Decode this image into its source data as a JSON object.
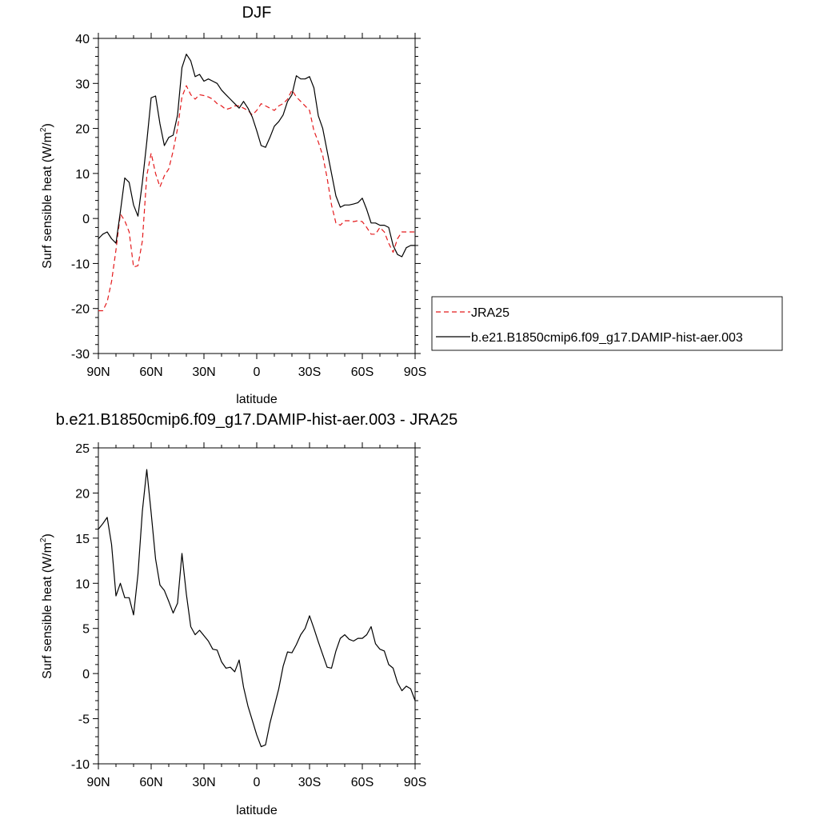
{
  "chart_data": [
    {
      "type": "line",
      "title": "DJF",
      "xlabel": "latitude",
      "ylabel": "Surf sensible heat (W/m",
      "ylabel_sup": "2",
      "ylabel_close": ")",
      "xlim": [
        -90,
        90
      ],
      "ylim": [
        -30,
        40
      ],
      "x_ticks": [
        -90,
        -60,
        -30,
        0,
        30,
        60,
        90
      ],
      "x_tick_labels": [
        "90N",
        "60N",
        "30N",
        "0",
        "30S",
        "60S",
        "90S"
      ],
      "y_ticks": [
        -30,
        -20,
        -10,
        0,
        10,
        20,
        30,
        40
      ],
      "y_tick_labels": [
        "-30",
        "-20",
        "-10",
        "0",
        "10",
        "20",
        "30",
        "40"
      ],
      "legend_placement": "right",
      "series": [
        {
          "name": "JRA25",
          "color": "#e41a1c",
          "dash": "dashed",
          "x": [
            -90,
            -87.5,
            -85,
            -82.5,
            -80,
            -77.5,
            -75,
            -72.5,
            -70,
            -67.5,
            -65,
            -62.5,
            -60,
            -57.5,
            -55,
            -52.5,
            -50,
            -47.5,
            -45,
            -42.5,
            -40,
            -37.5,
            -35,
            -32.5,
            -30,
            -27.5,
            -25,
            -22.5,
            -20,
            -17.5,
            -15,
            -12.5,
            -10,
            -7.5,
            -5,
            -2.5,
            0,
            2.5,
            5,
            7.5,
            10,
            12.5,
            15,
            17.5,
            20,
            22.5,
            25,
            27.5,
            30,
            32.5,
            35,
            37.5,
            40,
            42.5,
            45,
            47.5,
            50,
            52.5,
            55,
            57.5,
            60,
            62.5,
            65,
            67.5,
            70,
            72.5,
            75,
            77.5,
            80,
            82.5,
            85,
            87.5,
            90
          ],
          "y": [
            -20.5,
            -20.5,
            -18.5,
            -14,
            -7,
            1,
            -0.5,
            -3,
            -10.8,
            -10.5,
            -5,
            9.5,
            14.5,
            10,
            7,
            9.5,
            11,
            15,
            20,
            27,
            29.5,
            27.5,
            26.5,
            27.5,
            27.3,
            27,
            26.5,
            25.5,
            25,
            24.2,
            24.5,
            25,
            25,
            24.5,
            24,
            23,
            24,
            25.5,
            25,
            24.5,
            24,
            25,
            25.5,
            26.5,
            28.5,
            27,
            26,
            25,
            24,
            19.5,
            17,
            14,
            9,
            3,
            -1,
            -1.5,
            -0.5,
            -0.5,
            -0.7,
            -0.5,
            -0.7,
            -2,
            -3.5,
            -3.5,
            -2,
            -3,
            -5.5,
            -7.5,
            -4.5,
            -3,
            -3,
            -3,
            -3
          ]
        },
        {
          "name": "b.e21.B1850cmip6.f09_g17.DAMIP-hist-aer.003",
          "color": "#000000",
          "dash": "solid",
          "x": [
            -90,
            -87.5,
            -85,
            -82.5,
            -80,
            -77.5,
            -75,
            -72.5,
            -70,
            -67.5,
            -65,
            -62.5,
            -60,
            -57.5,
            -55,
            -52.5,
            -50,
            -47.5,
            -45,
            -42.5,
            -40,
            -37.5,
            -35,
            -32.5,
            -30,
            -27.5,
            -25,
            -22.5,
            -20,
            -17.5,
            -15,
            -12.5,
            -10,
            -7.5,
            -5,
            -2.5,
            0,
            2.5,
            5,
            7.5,
            10,
            12.5,
            15,
            17.5,
            20,
            22.5,
            25,
            27.5,
            30,
            32.5,
            35,
            37.5,
            40,
            42.5,
            45,
            47.5,
            50,
            52.5,
            55,
            57.5,
            60,
            62.5,
            65,
            67.5,
            70,
            72.5,
            75,
            77.5,
            80,
            82.5,
            85,
            87.5,
            90
          ],
          "y": [
            -4.5,
            -3.5,
            -3,
            -4.5,
            -5.5,
            1.5,
            9,
            8,
            3,
            0.5,
            8,
            17,
            26.8,
            27.2,
            21,
            16.2,
            18,
            18.5,
            23,
            33.5,
            36.5,
            35,
            31.5,
            32,
            30.5,
            31,
            30.5,
            30,
            28.5,
            27.5,
            26.5,
            25.5,
            24.5,
            26,
            24.5,
            22.5,
            19.5,
            16.2,
            15.8,
            18,
            20.5,
            21.5,
            23,
            26,
            27.5,
            31.7,
            31,
            31,
            31.5,
            29,
            22.8,
            20,
            15,
            10,
            5,
            2.5,
            3,
            3,
            3.2,
            3.5,
            4.5,
            2,
            -1,
            -1,
            -1.5,
            -1.5,
            -2,
            -6,
            -8,
            -8.5,
            -6.5,
            -6,
            -6
          ]
        }
      ]
    },
    {
      "type": "line",
      "title": "b.e21.B1850cmip6.f09_g17.DAMIP-hist-aer.003 - JRA25",
      "xlabel": "latitude",
      "ylabel": "Surf sensible heat (W/m",
      "ylabel_sup": "2",
      "ylabel_close": ")",
      "xlim": [
        -90,
        90
      ],
      "ylim": [
        -10,
        25
      ],
      "x_ticks": [
        -90,
        -60,
        -30,
        0,
        30,
        60,
        90
      ],
      "x_tick_labels": [
        "90N",
        "60N",
        "30N",
        "0",
        "30S",
        "60S",
        "90S"
      ],
      "y_ticks": [
        -10,
        -5,
        0,
        5,
        10,
        15,
        20,
        25
      ],
      "y_tick_labels": [
        "-10",
        "-5",
        "0",
        "5",
        "10",
        "15",
        "20",
        "25"
      ],
      "series": [
        {
          "color": "#000000",
          "dash": "solid",
          "x": [
            -90,
            -87.5,
            -85,
            -82.5,
            -80,
            -77.5,
            -75,
            -72.5,
            -70,
            -67.5,
            -65,
            -62.5,
            -60,
            -57.5,
            -55,
            -52.5,
            -50,
            -47.5,
            -45,
            -42.5,
            -40,
            -37.5,
            -35,
            -32.5,
            -30,
            -27.5,
            -25,
            -22.5,
            -20,
            -17.5,
            -15,
            -12.5,
            -10,
            -7.5,
            -5,
            -2.5,
            0,
            2.5,
            5,
            7.5,
            10,
            12.5,
            15,
            17.5,
            20,
            22.5,
            25,
            27.5,
            30,
            32.5,
            35,
            37.5,
            40,
            42.5,
            45,
            47.5,
            50,
            52.5,
            55,
            57.5,
            60,
            62.5,
            65,
            67.5,
            70,
            72.5,
            75,
            77.5,
            80,
            82.5,
            85,
            87.5,
            90
          ],
          "y": [
            16,
            16.6,
            17.3,
            14.3,
            8.6,
            10,
            8.4,
            8.4,
            6.5,
            11,
            18,
            22.6,
            17.8,
            12.7,
            9.8,
            9.2,
            8,
            6.7,
            7.8,
            13.3,
            8.8,
            5.2,
            4.3,
            4.8,
            4.2,
            3.6,
            2.7,
            2.6,
            1.3,
            0.6,
            0.7,
            0.2,
            1.5,
            -1.5,
            -3.6,
            -5.2,
            -6.8,
            -8.1,
            -7.9,
            -5.5,
            -3.6,
            -1.7,
            0.8,
            2.4,
            2.3,
            3.2,
            4.3,
            5,
            6.4,
            5,
            3.5,
            2.1,
            0.7,
            0.6,
            2.5,
            3.9,
            4.3,
            3.8,
            3.6,
            3.9,
            3.9,
            4.3,
            5.2,
            3.3,
            2.7,
            2.5,
            1,
            0.6,
            -1,
            -1.9,
            -1.4,
            -1.7,
            -3
          ]
        }
      ]
    }
  ]
}
